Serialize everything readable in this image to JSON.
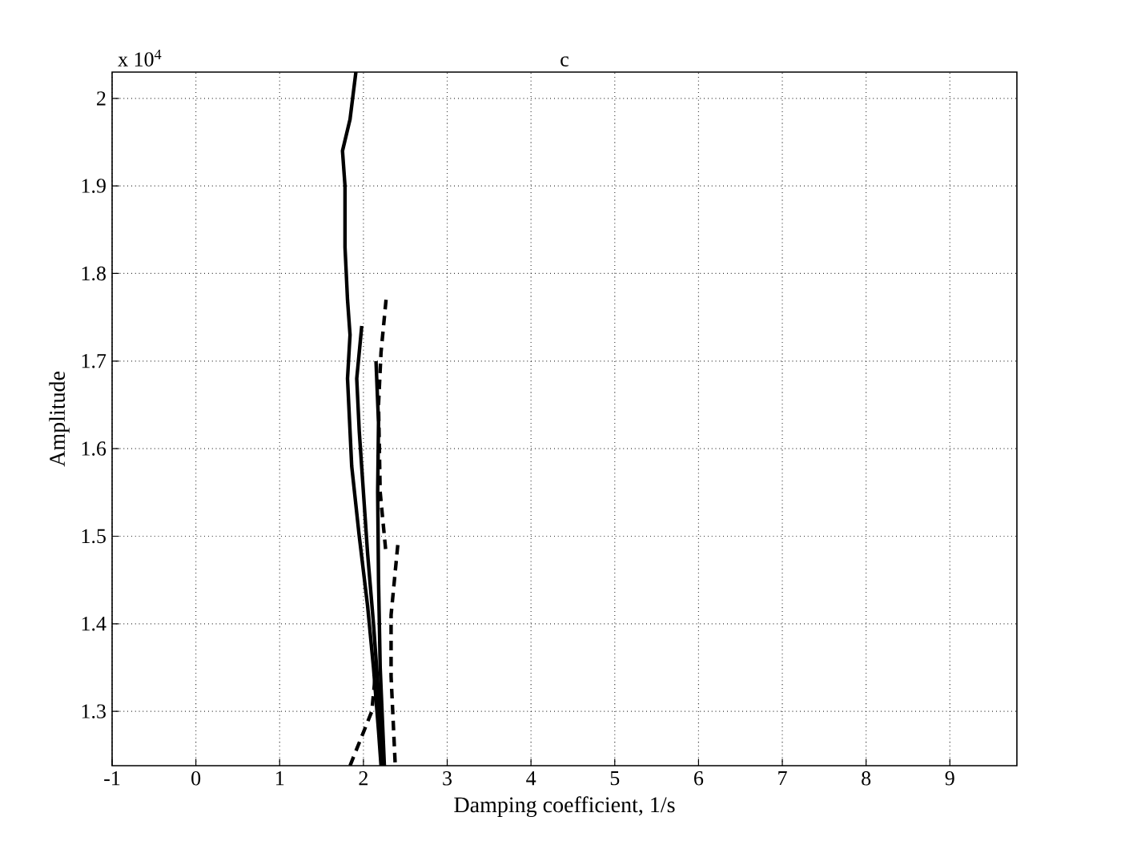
{
  "chart_data": {
    "type": "line",
    "title": "c",
    "xlabel": "Damping coefficient, 1/s",
    "ylabel": "Amplitude",
    "annotations": [
      "x 10$^{4}$"
    ],
    "xlim": [
      -1,
      9.8
    ],
    "ylim": [
      1.238,
      2.03
    ],
    "xticks": [
      -1,
      0,
      1,
      2,
      3,
      4,
      5,
      6,
      7,
      8,
      9
    ],
    "yticks": [
      1.3,
      1.4,
      1.5,
      1.6,
      1.7,
      1.8,
      1.9,
      2
    ],
    "grid": true,
    "marker": "none",
    "series": [
      {
        "color": "#000000",
        "line_style": "solid",
        "x": [
          1.91,
          1.84,
          1.75,
          1.78,
          1.78,
          1.81,
          1.84,
          1.81,
          1.84,
          1.86,
          1.95,
          2.05,
          2.12,
          2.18,
          2.21
        ],
        "values": [
          2.03,
          1.976,
          1.94,
          1.9,
          1.83,
          1.77,
          1.73,
          1.68,
          1.62,
          1.58,
          1.5,
          1.42,
          1.35,
          1.278,
          1.238
        ]
      },
      {
        "color": "#000000",
        "line_style": "solid",
        "x": [
          1.98,
          1.92,
          1.95,
          2.0,
          2.05,
          2.12,
          2.18,
          2.22
        ],
        "values": [
          1.74,
          1.68,
          1.62,
          1.55,
          1.48,
          1.4,
          1.32,
          1.238
        ]
      },
      {
        "color": "#000000",
        "line_style": "solid",
        "x": [
          2.15,
          2.18,
          2.17,
          2.18,
          2.2,
          2.25
        ],
        "values": [
          1.7,
          1.63,
          1.55,
          1.45,
          1.35,
          1.238
        ]
      },
      {
        "color": "#000000",
        "line_style": "dashed",
        "x": [
          2.27,
          2.21,
          2.18,
          2.2,
          2.27
        ],
        "values": [
          1.77,
          1.71,
          1.65,
          1.55,
          1.48
        ]
      },
      {
        "color": "#000000",
        "line_style": "dashed",
        "x": [
          2.41,
          2.33,
          2.33,
          2.38
        ],
        "values": [
          1.49,
          1.41,
          1.34,
          1.238
        ]
      },
      {
        "color": "#000000",
        "line_style": "dashed",
        "x": [
          1.84,
          2.1,
          2.15
        ],
        "values": [
          1.238,
          1.3,
          1.35
        ]
      }
    ]
  }
}
